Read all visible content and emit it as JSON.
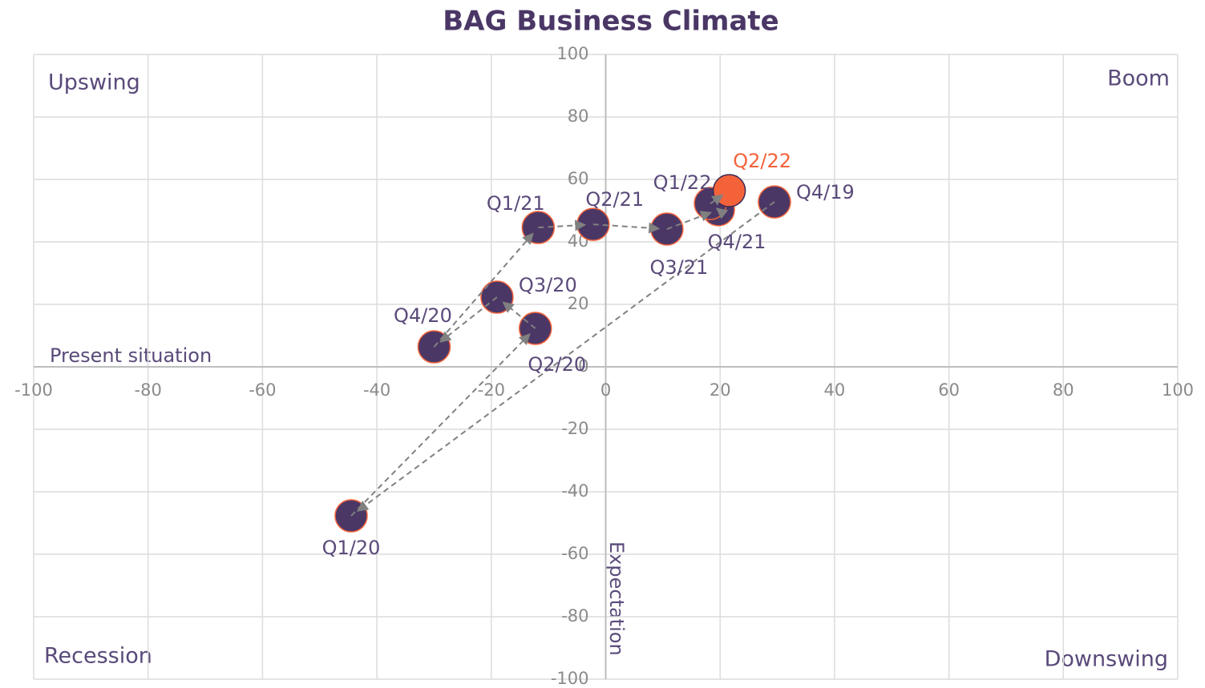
{
  "chart_data": {
    "type": "scatter",
    "title": "BAG Business Climate",
    "x_label": "Present situation",
    "y_label": "Expectation",
    "annotations": [
      "Upswing",
      "Boom",
      "Recession",
      "Downswing"
    ],
    "xlim": [
      -100,
      100
    ],
    "ylim": [
      -100,
      100
    ],
    "xticks": [
      -100,
      -80,
      -60,
      -40,
      -20,
      0,
      20,
      40,
      60,
      80,
      100
    ],
    "yticks": [
      -100,
      -80,
      -60,
      -40,
      -20,
      0,
      20,
      40,
      60,
      80,
      100
    ],
    "grid": true,
    "arrow_color": "#808080",
    "series": [
      {
        "labels": [
          "Q4/19",
          "Q1/20",
          "Q2/20",
          "Q3/20",
          "Q4/20",
          "Q1/21",
          "Q2/21",
          "Q3/21",
          "Q4/21",
          "Q1/22",
          "Q2/22"
        ],
        "x": [
          29.5,
          -44.5,
          -12.3,
          -19,
          -30,
          -11.8,
          -2.2,
          10.7,
          19.7,
          18.3,
          21.6
        ],
        "values": [
          52.8,
          -47.7,
          12.3,
          22.3,
          6.4,
          44.6,
          45.6,
          44.1,
          50.3,
          52.3,
          56.4
        ],
        "colors": [
          "#4a3766",
          "#4a3766",
          "#4a3766",
          "#4a3766",
          "#4a3766",
          "#4a3766",
          "#4a3766",
          "#4a3766",
          "#4a3766",
          "#4a3766",
          "#f4623a"
        ]
      }
    ]
  }
}
